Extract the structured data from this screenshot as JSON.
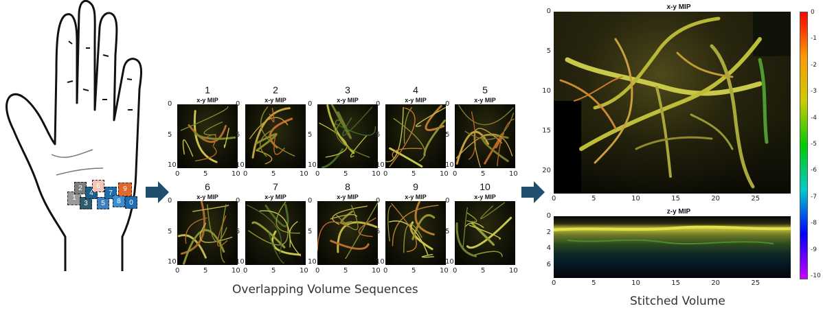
{
  "hand": {
    "markers": [
      {
        "label": "1",
        "color": "#9a9a9a"
      },
      {
        "label": "2",
        "color": "#7d7d7d"
      },
      {
        "label": "3",
        "color": "#2d5a6d"
      },
      {
        "label": "4",
        "color": "#1c5f8a"
      },
      {
        "label": "5",
        "color": "#3e7fc1"
      },
      {
        "label": "6",
        "color": "#f3c4b4"
      },
      {
        "label": "7",
        "color": "#1c6da8"
      },
      {
        "label": "8",
        "color": "#3a8fd3"
      },
      {
        "label": "9",
        "color": "#e0682c"
      },
      {
        "label": "0",
        "color": "#1a6fb6"
      }
    ]
  },
  "panels": [
    {
      "num": "1",
      "title": "x-y MIP"
    },
    {
      "num": "2",
      "title": "x-y MIP"
    },
    {
      "num": "3",
      "title": "x-y MIP"
    },
    {
      "num": "4",
      "title": "x-y MIP"
    },
    {
      "num": "5",
      "title": "x-y MIP"
    },
    {
      "num": "6",
      "title": "x-y MIP"
    },
    {
      "num": "7",
      "title": "x-y MIP"
    },
    {
      "num": "8",
      "title": "x-y MIP"
    },
    {
      "num": "9",
      "title": "x-y MIP"
    },
    {
      "num": "10",
      "title": "x-y MIP"
    }
  ],
  "panel_ticks": {
    "x": [
      "0",
      "5",
      "10"
    ],
    "y": [
      "0",
      "5",
      "10"
    ]
  },
  "captions": {
    "middle": "Overlapping Volume Sequences",
    "right": "Stitched Volume"
  },
  "stitched_xy": {
    "title": "x-y MIP",
    "xticks": [
      "0",
      "5",
      "10",
      "15",
      "20",
      "25"
    ],
    "yticks": [
      "0",
      "5",
      "10",
      "15",
      "20"
    ]
  },
  "stitched_zy": {
    "title": "z-y MIP",
    "xticks": [
      "0",
      "5",
      "10",
      "15",
      "20",
      "25"
    ],
    "yticks": [
      "0",
      "2",
      "4",
      "6"
    ]
  },
  "colorbar": {
    "ticks": [
      "0",
      "-1",
      "-2",
      "-3",
      "-4",
      "-5",
      "-6",
      "-7",
      "-8",
      "-9",
      "-10"
    ],
    "colors": [
      "#ff0000",
      "#ff9900",
      "#cccc00",
      "#00cc00",
      "#00cccc",
      "#0000ff",
      "#cc00ff"
    ]
  },
  "colors": {
    "arrow": "#1f4e6e",
    "vessel": "#c8c84a"
  }
}
